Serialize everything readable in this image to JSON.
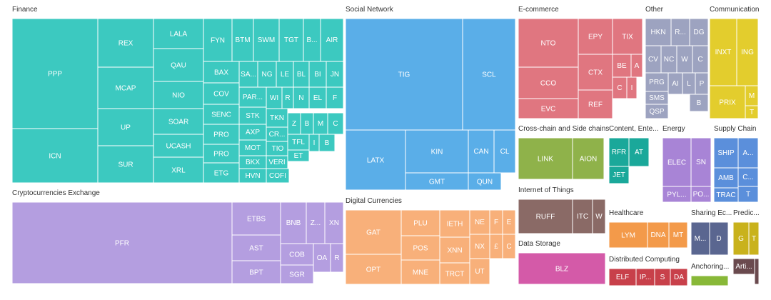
{
  "chart_data": {
    "type": "treemap",
    "groups": [
      {
        "name": "Finance",
        "color": "#3cc9c0",
        "tiles": [
          "PPP",
          "ICN",
          "REX",
          "MCAP",
          "UP",
          "SUR",
          "LALA",
          "QAU",
          "NIO",
          "SOAR",
          "UCASH",
          "XRL",
          "FYN",
          "BTM",
          "SWM",
          "TGT",
          "B...",
          "AIR",
          "BAX",
          "SA...",
          "NG",
          "LE",
          "BL",
          "BI",
          "JN",
          "COV",
          "PAR...",
          "WI",
          "R",
          "N",
          "EL",
          "F",
          "SENC",
          "STK",
          "TKN",
          "Z",
          "B",
          "M",
          "C",
          "PRO",
          "AXP",
          "CR...",
          "PRO",
          "MOT",
          "TIO",
          "TFL",
          "I",
          "B",
          "BKX",
          "VERI",
          "ET",
          "ETG",
          "HVN",
          "COFI"
        ]
      },
      {
        "name": "Social Network",
        "color": "#5aaee8",
        "tiles": [
          "TIG",
          "SCL",
          "LATX",
          "KIN",
          "GMT",
          "CAN",
          "CL",
          "QUN"
        ]
      },
      {
        "name": "E-commerce",
        "color": "#e07680",
        "tiles": [
          "NTO",
          "EPY",
          "TIX",
          "CCO",
          "CTX",
          "BE",
          "A",
          "C",
          "I",
          "EVC",
          "REF"
        ]
      },
      {
        "name": "Other",
        "color": "#9da3c0",
        "tiles": [
          "HKN",
          "R...",
          "DG",
          "CV",
          "NC",
          "W",
          "C",
          "PRG",
          "AI",
          "L",
          "P",
          "SMS",
          "B",
          "QSP"
        ]
      },
      {
        "name": "Communication",
        "color": "#e3cd2d",
        "tiles": [
          "INXT",
          "ING",
          "PRIX",
          "M",
          "T"
        ]
      },
      {
        "name": "Cryptocurrencies Exchange",
        "color": "#b49ee0",
        "tiles": [
          "PFR",
          "ETBS",
          "AST",
          "BPT",
          "BNB",
          "Z...",
          "XN",
          "COB",
          "OA",
          "R",
          "SGR"
        ]
      },
      {
        "name": "Digital Currencies",
        "color": "#f8b07a",
        "tiles": [
          "GAT",
          "OPT",
          "PLU",
          "POS",
          "MNE",
          "IETH",
          "XNN",
          "TRCT",
          "NE",
          "F",
          "E",
          "NX",
          "£",
          "C",
          "UT"
        ]
      },
      {
        "name": "Cross-chain and Side chains",
        "color": "#8fb24a",
        "tiles": [
          "LINK",
          "AION"
        ]
      },
      {
        "name": "Internet of Things",
        "color": "#8a6a66",
        "tiles": [
          "RUFF",
          "ITC",
          "W"
        ]
      },
      {
        "name": "Data Storage",
        "color": "#d45aa8",
        "tiles": [
          "BLZ"
        ]
      },
      {
        "name": "Content, Ente...",
        "color": "#1aa89a",
        "tiles": [
          "RFR",
          "AT",
          "JET"
        ]
      },
      {
        "name": "Energy",
        "color": "#a884d6",
        "tiles": [
          "ELEC",
          "SN",
          "PYL...",
          "PO..."
        ]
      },
      {
        "name": "Supply Chain",
        "color": "#5b8fdb",
        "tiles": [
          "SHIP",
          "A...",
          "AMB",
          "C...",
          "TRAC",
          "T"
        ]
      },
      {
        "name": "Healthcare",
        "color": "#f39a4a",
        "tiles": [
          "LYM",
          "DNA",
          "MT"
        ]
      },
      {
        "name": "Sharing Ec...",
        "color": "#5a6690",
        "tiles": [
          "M...",
          "D"
        ]
      },
      {
        "name": "Predic...",
        "color": "#c9b21c",
        "tiles": [
          "G",
          "T"
        ]
      },
      {
        "name": "Distributed Computing",
        "color": "#c8404a",
        "tiles": [
          "ELF",
          "IP...",
          "S",
          "DA"
        ]
      },
      {
        "name": "Anchoring...",
        "color": "#88b838",
        "tiles": []
      },
      {
        "name": "",
        "color": "#6a4a4e",
        "tiles": [
          "Arti..."
        ]
      }
    ]
  }
}
